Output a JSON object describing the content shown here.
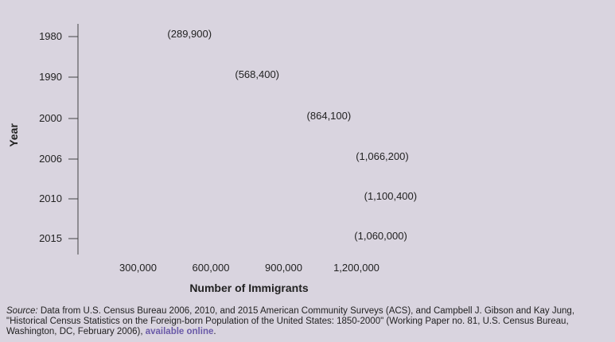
{
  "chart_data": {
    "type": "bar",
    "orientation": "horizontal",
    "style": "pictograph",
    "categories": [
      "1980",
      "1990",
      "2000",
      "2006",
      "2010",
      "2015"
    ],
    "values": [
      289900,
      568400,
      864100,
      1066200,
      1100400,
      1060000
    ],
    "value_labels": [
      "(289,900)",
      "(568,400)",
      "(864,100)",
      "(1,066,200)",
      "(1,100,400)",
      "(1,060,000)"
    ],
    "xlabel": "Number of Immigrants",
    "ylabel": "Year",
    "xticks": [
      300000,
      600000,
      900000,
      1200000
    ],
    "xtick_labels": [
      "300,000",
      "600,000",
      "900,000",
      "1,200,000"
    ],
    "xlim": [
      0,
      1200000
    ],
    "icon": "family-icon",
    "icon_value": 100000,
    "icon_color": "#1796a0"
  },
  "source": {
    "label": "Source:",
    "text": " Data from U.S. Census Bureau 2006, 2010, and 2015 American Community Surveys (ACS), and Campbell J. Gibson and Kay Jung, \"Historical Census Statistics on the Foreign-born Population of the United States: 1850-2000\" (Working Paper no. 81, U.S. Census Bureau, Washington, DC, February 2006), ",
    "link": "available online",
    "end": "."
  }
}
